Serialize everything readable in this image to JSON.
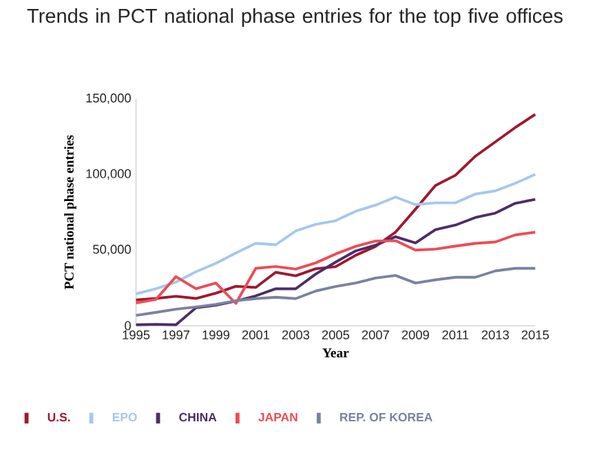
{
  "chart_data": {
    "type": "line",
    "title": "Trends in PCT national phase entries for the top five offices",
    "xlabel": "Year",
    "ylabel": "PCT national phase entries",
    "x": [
      1995,
      1996,
      1997,
      1998,
      1999,
      2000,
      2001,
      2002,
      2003,
      2004,
      2005,
      2006,
      2007,
      2008,
      2009,
      2010,
      2011,
      2012,
      2013,
      2014,
      2015
    ],
    "series": [
      {
        "name": "U.S.",
        "color": "#a0182e",
        "values": [
          17000,
          18000,
          19400,
          18000,
          21500,
          26000,
          25300,
          35300,
          33000,
          37600,
          39000,
          46500,
          52400,
          61800,
          77000,
          92600,
          99400,
          112000,
          121500,
          131000,
          139700
        ]
      },
      {
        "name": "EPO",
        "color": "#a5c8ec",
        "values": [
          21000,
          24400,
          28800,
          35600,
          41200,
          48000,
          54400,
          53500,
          62600,
          67000,
          69400,
          75600,
          79700,
          85000,
          80000,
          81200,
          81200,
          87000,
          89100,
          94100,
          100000
        ]
      },
      {
        "name": "CHINA",
        "color": "#4b2d6b",
        "values": [
          600,
          900,
          600,
          11800,
          13500,
          16200,
          19700,
          24400,
          24400,
          34100,
          42000,
          49400,
          53200,
          58800,
          54700,
          63500,
          66500,
          71500,
          74400,
          80900,
          83500
        ]
      },
      {
        "name": "JAPAN",
        "color": "#ee4b55",
        "values": [
          15000,
          17400,
          32400,
          24400,
          28200,
          14700,
          37900,
          39100,
          37400,
          41500,
          47400,
          52400,
          55900,
          56200,
          50000,
          50600,
          52600,
          54400,
          55300,
          60000,
          61800
        ]
      },
      {
        "name": "REP. OF KOREA",
        "color": "#7b82a0",
        "values": [
          6800,
          8800,
          10900,
          12400,
          14100,
          16500,
          17900,
          18800,
          17900,
          22900,
          25900,
          28200,
          31500,
          33200,
          28200,
          30300,
          32000,
          32000,
          36200,
          37900,
          37900
        ]
      }
    ],
    "xlim": [
      1995,
      2015
    ],
    "xticks": [
      1995,
      1997,
      1999,
      2001,
      2003,
      2005,
      2007,
      2009,
      2011,
      2013,
      2015
    ],
    "ylim": [
      0,
      150000
    ],
    "yticks": [
      0,
      {
        "value": 50000,
        "label": "50,000"
      },
      {
        "value": 100000,
        "label": "100,000"
      },
      {
        "value": 150000,
        "label": "150,000"
      }
    ],
    "grid": false,
    "legend": "bottom",
    "marker": "none",
    "line_style": "solid"
  }
}
